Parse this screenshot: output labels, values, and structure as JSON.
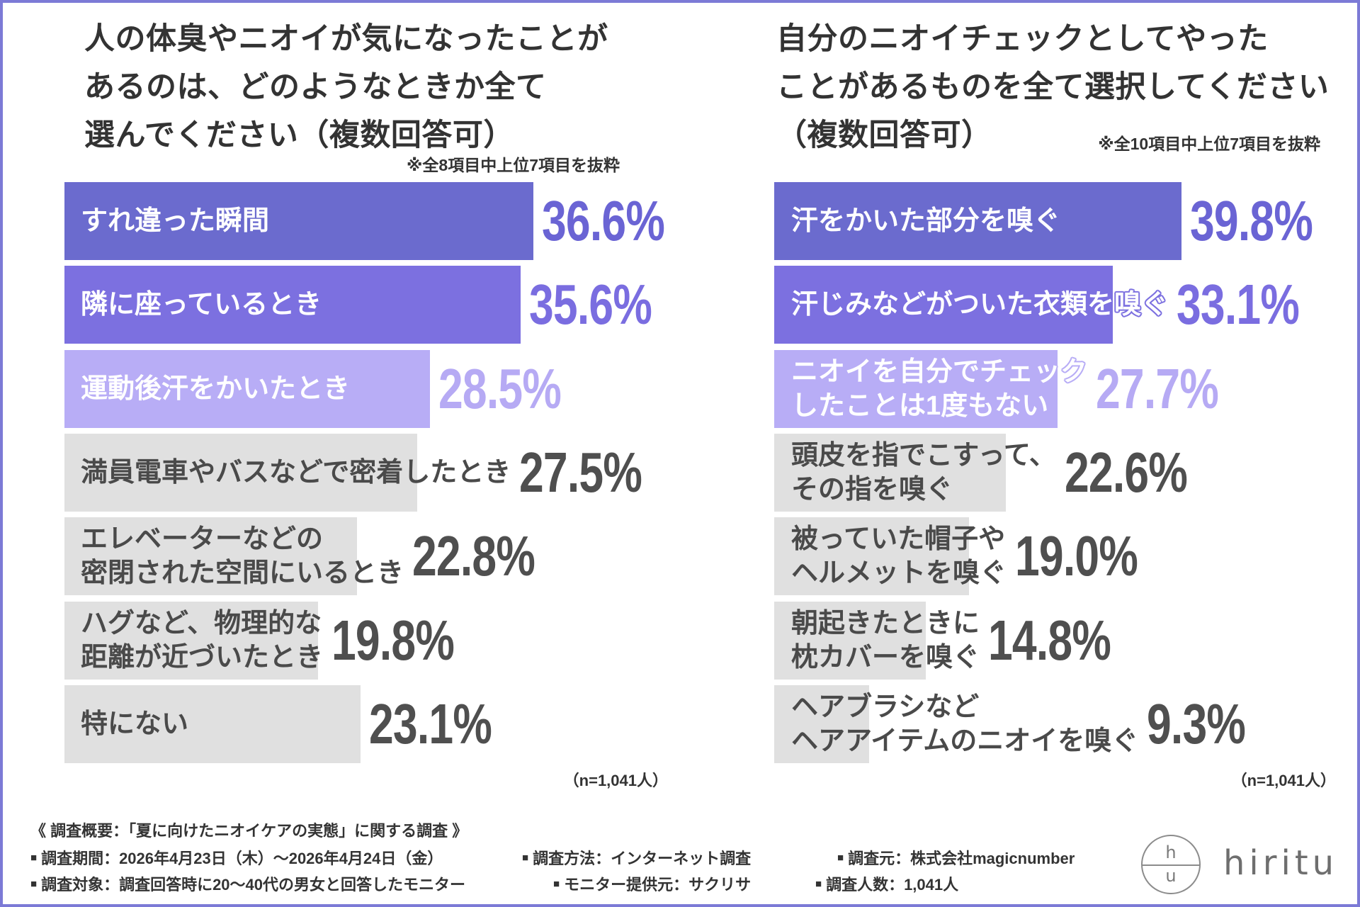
{
  "chart_data": [
    {
      "type": "bar",
      "orientation": "horizontal",
      "title": "人の体臭やニオイが気になったことが\nあるのは、どのようなときか全て\n選んでください（複数回答可）",
      "note": "※全8項目中上位7項目を抜粋",
      "sample_size": "（n=1,041人）",
      "categories": [
        "すれ違った瞬間",
        "隣に座っているとき",
        "運動後汗をかいたとき",
        "満員電車やバスなどで密着したとき",
        "エレベーターなどの\n密閉された空間にいるとき",
        "ハグなど、物理的な\n距離が近づいたとき",
        "特にない"
      ],
      "values": [
        36.6,
        35.6,
        28.5,
        27.5,
        22.8,
        19.8,
        23.1
      ],
      "value_labels": [
        "36.6%",
        "35.6%",
        "28.5%",
        "27.5%",
        "22.8%",
        "19.8%",
        "23.1%"
      ],
      "bar_colors": [
        "#6B6BCE",
        "#7C70E0",
        "#B8ADF6",
        "#E0E0E0",
        "#E0E0E0",
        "#E0E0E0",
        "#E0E0E0"
      ],
      "label_colors": [
        "#FFFFFF",
        "#FFFFFF",
        "#FFFFFF",
        "#4A4A4A",
        "#4A4A4A",
        "#4A4A4A",
        "#4A4A4A"
      ],
      "value_colors": [
        "#6A64D4",
        "#7A6DE0",
        "#B6AAF4",
        "#4F4F4F",
        "#4F4F4F",
        "#4F4F4F",
        "#4F4F4F"
      ]
    },
    {
      "type": "bar",
      "orientation": "horizontal",
      "title": "自分のニオイチェックとしてやった\nことがあるものを全て選択してください\n（複数回答可）",
      "note": "※全10項目中上位7項目を抜粋",
      "sample_size": "（n=1,041人）",
      "categories": [
        "汗をかいた部分を嗅ぐ",
        "汗じみなどがついた衣類を嗅ぐ",
        "ニオイを自分でチェック\nしたことは1度もない",
        "頭皮を指でこすって、\nその指を嗅ぐ",
        "被っていた帽子や\nヘルメットを嗅ぐ",
        "朝起きたときに\n枕カバーを嗅ぐ",
        "ヘアブラシなど\nヘアアイテムのニオイを嗅ぐ"
      ],
      "values": [
        39.8,
        33.1,
        27.7,
        22.6,
        19.0,
        14.8,
        9.3
      ],
      "value_labels": [
        "39.8%",
        "33.1%",
        "27.7%",
        "22.6%",
        "19.0%",
        "14.8%",
        "9.3%"
      ],
      "bar_colors": [
        "#6B6BCE",
        "#7C70E0",
        "#B8ADF6",
        "#E0E0E0",
        "#E0E0E0",
        "#E0E0E0",
        "#E0E0E0"
      ],
      "label_colors": [
        "#FFFFFF",
        "#FFFFFF",
        "#FFFFFF",
        "#4A4A4A",
        "#4A4A4A",
        "#4A4A4A",
        "#4A4A4A"
      ],
      "value_colors": [
        "#6A64D4",
        "#7A6DE0",
        "#B6AAF4",
        "#4F4F4F",
        "#4F4F4F",
        "#4F4F4F",
        "#4F4F4F"
      ]
    }
  ],
  "survey": {
    "heading": "《 調査概要：「夏に向けたニオイケアの実態」に関する調査 》",
    "bullet": "■",
    "items": [
      "調査期間：2026年4月23日（木）～2026年4月24日（金）",
      "調査方法：インターネット調査",
      "調査元：株式会社magicnumber",
      "調査対象：調査回答時に20～40代の男女と回答したモニター",
      "モニター提供元：サクリサ",
      "調査人数：1,041人"
    ]
  },
  "logo": {
    "mark_top": "h",
    "mark_bottom": "u",
    "wordmark": "hiritu"
  }
}
